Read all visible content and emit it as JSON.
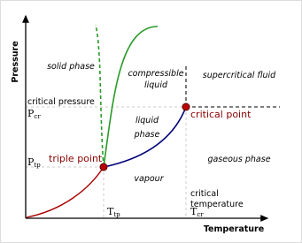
{
  "axes": {
    "y_label": "Pressure",
    "x_label": "Temperature"
  },
  "regions": {
    "solid": "solid phase",
    "compressible_liquid": [
      "compressible",
      "liquid"
    ],
    "supercritical": "supercritical fluid",
    "liquid": [
      "liquid",
      "phase"
    ],
    "gaseous": "gaseous phase",
    "vapour": "vapour"
  },
  "points": {
    "triple": "triple point",
    "critical": "critical point"
  },
  "labels": {
    "critical_pressure": "critical pressure",
    "critical_temperature": [
      "critical",
      "temperature"
    ],
    "p_cr": {
      "symbol": "P",
      "subscript": "cr"
    },
    "p_tp": {
      "symbol": "P",
      "subscript": "tp"
    },
    "t_tp": {
      "symbol": "T",
      "subscript": "tp"
    },
    "t_cr": {
      "symbol": "T",
      "subscript": "cr"
    }
  }
}
